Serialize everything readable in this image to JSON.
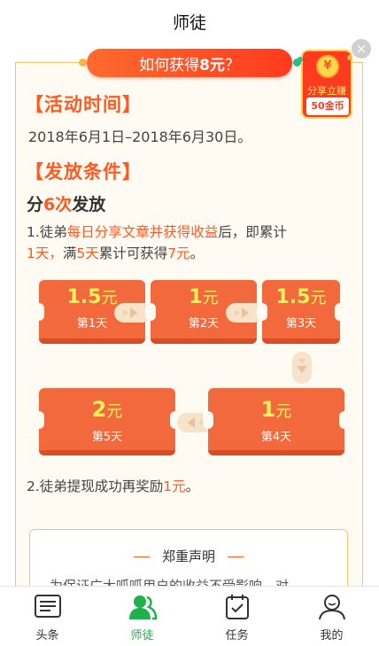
{
  "nav": {
    "title": "师徒"
  },
  "banner": {
    "prefix": "如何获得",
    "amount": "8元",
    "suffix": "？"
  },
  "badge": {
    "coin": "¥",
    "line1": "分享立赚",
    "line2": "50金币"
  },
  "close": {
    "glyph": "×"
  },
  "activity": {
    "title": "【活动时间】",
    "dates": "2018年6月1日–2018年6月30日。"
  },
  "conditions": {
    "title": "【发放条件】",
    "sub_prefix": "分",
    "sub_count": "6次",
    "sub_suffix": "发放",
    "rule1": {
      "p1": "1.徒弟",
      "h1": "每日分享文章并获得收益",
      "p2": "后，即累计",
      "h2": "1天，",
      "p3": "满",
      "h3": "5天",
      "p4": "累计可获得",
      "h4": "7元",
      "p5": "。"
    },
    "rule2": {
      "p1": "2.徒弟提现成功再奖励",
      "h1": "1元",
      "p2": "。"
    }
  },
  "tickets": [
    {
      "amount": "1.5",
      "unit": "元",
      "day": "第1天"
    },
    {
      "amount": "1",
      "unit": "元",
      "day": "第2天"
    },
    {
      "amount": "1.5",
      "unit": "元",
      "day": "第3天"
    },
    {
      "amount": "1",
      "unit": "元",
      "day": "第4天"
    },
    {
      "amount": "2",
      "unit": "元",
      "day": "第5天"
    }
  ],
  "declaration": {
    "title": "郑重声明",
    "body": "为保证广大呱呱用户的收益不受影响，对"
  },
  "tabs": [
    {
      "label": "头条",
      "icon": "news-icon",
      "active": false
    },
    {
      "label": "师徒",
      "icon": "mentor-icon",
      "active": true
    },
    {
      "label": "任务",
      "icon": "task-icon",
      "active": false
    },
    {
      "label": "我的",
      "icon": "profile-icon",
      "active": false
    }
  ],
  "colors": {
    "accent": "#ff5a1f",
    "ticket": "#f2693d",
    "active_tab": "#21b04b",
    "border": "#f6c36e"
  }
}
